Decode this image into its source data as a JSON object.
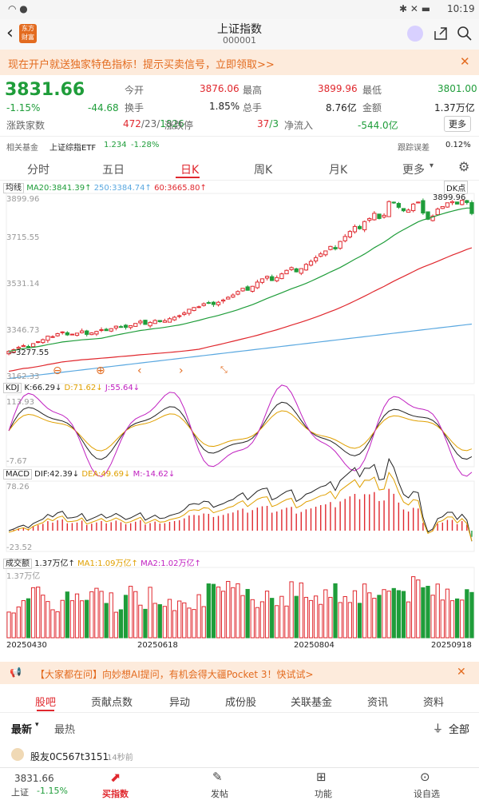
{
  "status": {
    "time": "10:19"
  },
  "header": {
    "title": "上证指数",
    "code": "000001",
    "logo": "东方财富"
  },
  "banner": {
    "text": "现在开户就送独家特色指标！提示买卖信号，立即领取>>"
  },
  "quote": {
    "price": "3831.66",
    "pct": "-1.15%",
    "chg": "-44.68",
    "open_label": "今开",
    "open": "3876.06",
    "high_label": "最高",
    "high": "3899.96",
    "low_label": "最低",
    "low": "3801.00",
    "turnover_label": "换手",
    "turnover": "1.85%",
    "vol_label": "总手",
    "vol": "8.76亿",
    "amount_label": "金额",
    "amount": "1.37万亿",
    "adv_label": "涨跌家数",
    "adv_up": "472",
    "adv_flat": "/23/",
    "adv_down": "1826",
    "limit_label": "涨跌停",
    "limit_up": "37",
    "limit_down": "/3",
    "inflow_label": "净流入",
    "inflow": "-544.0亿",
    "more": "更多",
    "fund_label": "相关基金",
    "fund_name": "上证综指ETF",
    "fund_price": "1.234",
    "fund_pct": "-1.28%",
    "follow_label": "跟踪误差",
    "follow_val": "0.12%"
  },
  "tabs": [
    "分时",
    "五日",
    "日K",
    "周K",
    "月K",
    "更多"
  ],
  "chart": {
    "ma_label": "均线",
    "ma20": "MA20:3841.39",
    "ma250": "250:3384.74",
    "ma60": "60:3665.80",
    "dk": "DK点",
    "ytop": "3899.96",
    "y2": "3715.55",
    "y3": "3531.14",
    "y4": "3346.73",
    "ybot": "3162.33",
    "low_mark": "3277.55",
    "high_mark": "3899.96",
    "kdj": "KDJ",
    "k": "K:66.29",
    "d": "D:71.62",
    "j": "J:55.64",
    "kdj_top": "113.93",
    "kdj_bot": "-7.67",
    "macd": "MACD",
    "dif": "DIF:42.39",
    "dea": "DEA:49.69",
    "m": "M:-14.62",
    "macd_top": "78.26",
    "macd_bot": "-23.52",
    "vol": "成交额",
    "vol_val": "1.37万亿",
    "ma1": "MA1:1.09万亿",
    "ma2": "MA2:1.02万亿",
    "vol_top": "1.37万亿",
    "dates": [
      "20250430",
      "20250618",
      "20250804",
      "20250918"
    ]
  },
  "chart_data": {
    "type": "candlestick",
    "ylim": [
      3162.33,
      3899.96
    ],
    "closes": [
      3279,
      3286,
      3295,
      3302,
      3298,
      3310,
      3318,
      3326,
      3340,
      3338,
      3350,
      3357,
      3345,
      3348,
      3352,
      3361,
      3347,
      3353,
      3359,
      3366,
      3362,
      3370,
      3380,
      3378,
      3375,
      3382,
      3391,
      3400,
      3387,
      3395,
      3403,
      3398,
      3402,
      3410,
      3416,
      3422,
      3433,
      3448,
      3455,
      3458,
      3470,
      3474,
      3467,
      3476,
      3485,
      3496,
      3505,
      3519,
      3532,
      3524,
      3540,
      3557,
      3570,
      3580,
      3563,
      3575,
      3590,
      3604,
      3615,
      3598,
      3611,
      3628,
      3640,
      3655,
      3670,
      3682,
      3700,
      3690,
      3720,
      3740,
      3760,
      3780,
      3771,
      3800,
      3812,
      3833,
      3812,
      3825,
      3880,
      3876,
      3857,
      3843,
      3846,
      3870,
      3878,
      3834,
      3809,
      3822,
      3850,
      3860,
      3875,
      3880,
      3870,
      3885,
      3876,
      3832
    ],
    "colors": {
      "up": "#e0282e",
      "down": "#1f9d3a",
      "ma20": "#1f9d3a",
      "ma60": "#e0282e",
      "ma250": "#5aa8e0"
    }
  },
  "adbar": {
    "text": "【大家都在问】向妙想AI提问，有机会得大疆Pocket 3！快试试>"
  },
  "subtabs": [
    "股吧",
    "贡献点数",
    "异动",
    "成份股",
    "关联基金",
    "资讯",
    "资料"
  ],
  "sort": {
    "newest": "最新",
    "hot": "最热",
    "all": "全部"
  },
  "post": {
    "user": "股友0C567t3151",
    "time": "14秒前"
  },
  "bottom": {
    "name": "上证",
    "price": "3831.66",
    "pct": "-1.15%",
    "buy": "买指数",
    "post": "发帖",
    "func": "功能",
    "alert": "设自选"
  }
}
